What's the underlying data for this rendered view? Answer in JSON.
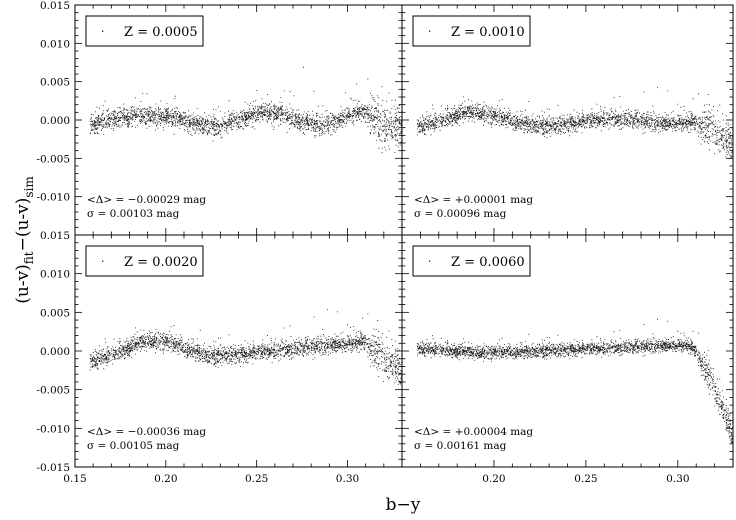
{
  "figure": {
    "ylabel_main": "(u-v)",
    "ylabel_sub1": "fit",
    "ylabel_dash": "−(u-v)",
    "ylabel_sub2": "sim",
    "xlabel": "b−y"
  },
  "colors": {
    "axes": "#000000",
    "points": "#1a1a1a",
    "background": "#ffffff"
  },
  "chart_data": [
    {
      "type": "scatter",
      "panel": "top-left",
      "legend": "Z = 0.0005",
      "delta_label": "<Δ> = −0.00029 mag",
      "sigma_label": "σ = 0.00103 mag",
      "mean_delta": -0.00029,
      "sigma": 0.00103,
      "xlim": [
        0.15,
        0.33
      ],
      "ylim": [
        -0.015,
        0.015
      ],
      "x_ticks": [],
      "y_ticks": [
        "0.015",
        "0.010",
        "0.005",
        "0.000",
        "-0.005",
        "-0.010"
      ],
      "xlabel": "b−y",
      "ylabel": "(u-v)fit−(u-v)sim",
      "trend": {
        "x": [
          0.158,
          0.17,
          0.185,
          0.2,
          0.215,
          0.23,
          0.245,
          0.255,
          0.265,
          0.275,
          0.285,
          0.295,
          0.305,
          0.313,
          0.318,
          0.325,
          0.33
        ],
        "y": [
          -0.0005,
          0.0,
          0.0006,
          0.0005,
          -0.0004,
          -0.0008,
          0.0006,
          0.0011,
          0.0007,
          -0.0003,
          -0.0006,
          0.0001,
          0.0009,
          0.0012,
          -0.001,
          -0.001,
          -0.0012
        ]
      },
      "scatter_sigma": 0.0009
    },
    {
      "type": "scatter",
      "panel": "top-right",
      "legend": "Z = 0.0010",
      "delta_label": "<Δ> = +0.00001 mag",
      "sigma_label": "σ = 0.00096 mag",
      "mean_delta": 1e-05,
      "sigma": 0.00096,
      "xlim": [
        0.15,
        0.33
      ],
      "ylim": [
        -0.015,
        0.015
      ],
      "x_ticks": [],
      "y_ticks": [],
      "trend": {
        "x": [
          0.158,
          0.17,
          0.18,
          0.19,
          0.2,
          0.215,
          0.23,
          0.245,
          0.26,
          0.275,
          0.29,
          0.305,
          0.31,
          0.318,
          0.325,
          0.33
        ],
        "y": [
          -0.0008,
          -0.0002,
          0.0008,
          0.0012,
          0.0006,
          -0.0004,
          -0.0008,
          -0.0003,
          0.0002,
          0.0001,
          -0.0004,
          -0.0003,
          -0.0002,
          -0.0012,
          -0.0025,
          -0.0032
        ]
      },
      "scatter_sigma": 0.0008
    },
    {
      "type": "scatter",
      "panel": "bottom-left",
      "legend": "Z = 0.0020",
      "delta_label": "<Δ> = −0.00036 mag",
      "sigma_label": "σ = 0.00105 mag",
      "mean_delta": -0.00036,
      "sigma": 0.00105,
      "xlim": [
        0.15,
        0.33
      ],
      "ylim": [
        -0.015,
        0.015
      ],
      "x_ticks": [
        "0.15",
        "0.20",
        "0.25",
        "0.30"
      ],
      "y_ticks": [
        "0.015",
        "0.010",
        "0.005",
        "0.000",
        "-0.005",
        "-0.010",
        "-0.015"
      ],
      "trend": {
        "x": [
          0.158,
          0.17,
          0.18,
          0.19,
          0.2,
          0.215,
          0.225,
          0.24,
          0.26,
          0.28,
          0.3,
          0.31,
          0.318,
          0.325,
          0.33
        ],
        "y": [
          -0.0013,
          -0.0005,
          0.0006,
          0.0015,
          0.0013,
          0.0,
          -0.0006,
          -0.0004,
          0.0001,
          0.0006,
          0.001,
          0.0013,
          -0.0008,
          -0.0018,
          -0.0025
        ]
      },
      "scatter_sigma": 0.0008
    },
    {
      "type": "scatter",
      "panel": "bottom-right",
      "legend": "Z = 0.0060",
      "delta_label": "<Δ> = +0.00004 mag",
      "sigma_label": "σ = 0.00161 mag",
      "mean_delta": 4e-05,
      "sigma": 0.00161,
      "xlim": [
        0.15,
        0.33
      ],
      "ylim": [
        -0.015,
        0.015
      ],
      "x_ticks": [
        "0.20",
        "0.25",
        "0.30"
      ],
      "y_ticks": [],
      "trend": {
        "x": [
          0.15,
          0.17,
          0.19,
          0.21,
          0.23,
          0.25,
          0.27,
          0.29,
          0.305,
          0.31,
          0.318,
          0.325,
          0.33
        ],
        "y": [
          0.0005,
          0.0002,
          -0.0001,
          -0.0001,
          0.0001,
          0.0003,
          0.0005,
          0.0007,
          0.0008,
          0.0,
          -0.004,
          -0.008,
          -0.011
        ]
      },
      "scatter_sigma": 0.0006
    }
  ]
}
